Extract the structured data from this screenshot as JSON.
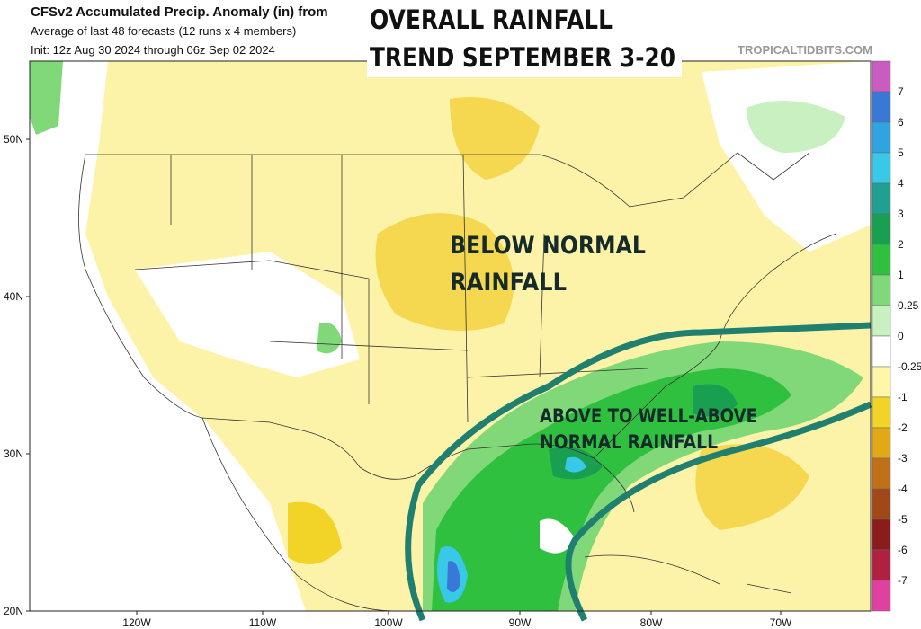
{
  "header": {
    "title": "CFSv2 Accumulated Precip. Anomaly (in) from",
    "subtitle": "Average of last 48 forecasts (12 runs x 4 members)",
    "init": "Init: 12z Aug 30 2024 through 06z Sep 02 2024",
    "source": "TROPICALTIDBITS.COM"
  },
  "overlay": {
    "headline": [
      "OVERALL RAINFALL",
      "TREND SEPTEMBER 3-20"
    ],
    "annotations": [
      "BELOW NORMAL",
      "RAINFALL",
      "ABOVE TO WELL-ABOVE",
      "NORMAL RAINFALL"
    ]
  },
  "axes": {
    "lat": [
      "50N",
      "40N",
      "30N",
      "20N"
    ],
    "lon": [
      "120W",
      "110W",
      "100W",
      "90W",
      "80W",
      "70W"
    ]
  },
  "colorbar": {
    "levels": [
      7,
      6,
      5,
      4,
      3,
      2,
      1,
      0.25,
      0,
      -0.25,
      -1,
      -2,
      -3,
      -4,
      -5,
      -6,
      -7
    ],
    "colors": [
      "#c85cc0",
      "#3a78d8",
      "#30a4e0",
      "#38c8e8",
      "#20a090",
      "#18a050",
      "#30c040",
      "#80d878",
      "#c8f0c0",
      "#ffffff",
      "#fff6a8",
      "#f2d428",
      "#e2a818",
      "#c07018",
      "#a04818",
      "#8c1c1c",
      "#b02040",
      "#e040a0"
    ]
  }
}
